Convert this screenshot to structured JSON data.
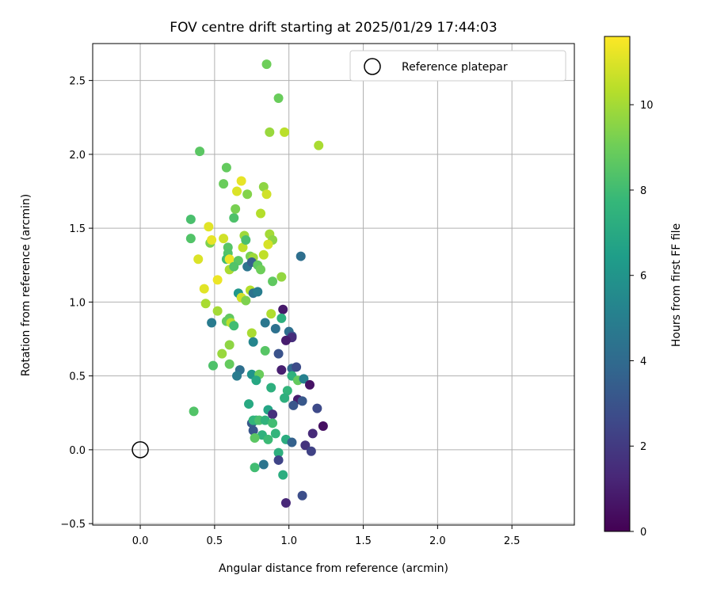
{
  "chart_data": {
    "type": "scatter",
    "title": "FOV centre drift starting at 2025/01/29 17:44:03",
    "xlabel": "Angular distance from reference (arcmin)",
    "ylabel": "Rotation from reference (arcmin)",
    "xlim": [
      -0.32,
      2.92
    ],
    "ylim": [
      -0.51,
      2.75
    ],
    "xticks": [
      0.0,
      0.5,
      1.0,
      1.5,
      2.0,
      2.5
    ],
    "xtick_labels": [
      "0.0",
      "0.5",
      "1.0",
      "1.5",
      "2.0",
      "2.5"
    ],
    "yticks": [
      -0.5,
      0.0,
      0.5,
      1.0,
      1.5,
      2.0,
      2.5
    ],
    "ytick_labels": [
      "−0.5",
      "0.0",
      "0.5",
      "1.0",
      "1.5",
      "2.0",
      "2.5"
    ],
    "grid": true,
    "legend": {
      "placement": "top-right",
      "entries": [
        "Reference platepar"
      ]
    },
    "reference_point": {
      "x": 0.0,
      "y": 0.0
    },
    "colorbar": {
      "label": "Hours from first FF file",
      "range": [
        0,
        11.6
      ],
      "ticks": [
        0,
        2,
        4,
        6,
        8,
        10
      ],
      "tick_labels": [
        "0",
        "2",
        "4",
        "6",
        "8",
        "10"
      ],
      "colormap": "viridis",
      "stops": [
        "#440154",
        "#482878",
        "#3e4989",
        "#31688e",
        "#26828e",
        "#1f9e89",
        "#35b779",
        "#6ece58",
        "#b5de2b",
        "#fde725"
      ]
    },
    "series": [
      {
        "points": [
          {
            "x": 0.85,
            "y": 2.61,
            "h": 9.0
          },
          {
            "x": 0.93,
            "y": 2.38,
            "h": 8.9
          },
          {
            "x": 0.87,
            "y": 2.15,
            "h": 9.8
          },
          {
            "x": 0.97,
            "y": 2.15,
            "h": 10.4
          },
          {
            "x": 1.2,
            "y": 2.06,
            "h": 10.1
          },
          {
            "x": 0.4,
            "y": 2.02,
            "h": 8.6
          },
          {
            "x": 0.58,
            "y": 1.91,
            "h": 8.8
          },
          {
            "x": 0.56,
            "y": 1.8,
            "h": 8.9
          },
          {
            "x": 0.68,
            "y": 1.82,
            "h": 11.2
          },
          {
            "x": 0.65,
            "y": 1.75,
            "h": 11.0
          },
          {
            "x": 0.72,
            "y": 1.73,
            "h": 9.4
          },
          {
            "x": 0.83,
            "y": 1.78,
            "h": 9.6
          },
          {
            "x": 0.85,
            "y": 1.73,
            "h": 10.8
          },
          {
            "x": 0.34,
            "y": 1.56,
            "h": 8.2
          },
          {
            "x": 0.63,
            "y": 1.57,
            "h": 8.3
          },
          {
            "x": 0.64,
            "y": 1.63,
            "h": 9.2
          },
          {
            "x": 0.81,
            "y": 1.6,
            "h": 10.3
          },
          {
            "x": 0.46,
            "y": 1.51,
            "h": 11.1
          },
          {
            "x": 0.34,
            "y": 1.43,
            "h": 8.4
          },
          {
            "x": 0.47,
            "y": 1.4,
            "h": 9.3
          },
          {
            "x": 0.48,
            "y": 1.42,
            "h": 11.2
          },
          {
            "x": 0.56,
            "y": 1.43,
            "h": 10.8
          },
          {
            "x": 0.59,
            "y": 1.37,
            "h": 8.5
          },
          {
            "x": 0.59,
            "y": 1.33,
            "h": 8.4
          },
          {
            "x": 0.7,
            "y": 1.45,
            "h": 9.9
          },
          {
            "x": 0.69,
            "y": 1.37,
            "h": 10.5
          },
          {
            "x": 0.71,
            "y": 1.42,
            "h": 8.2
          },
          {
            "x": 0.87,
            "y": 1.46,
            "h": 10.0
          },
          {
            "x": 0.89,
            "y": 1.42,
            "h": 9.6
          },
          {
            "x": 0.86,
            "y": 1.39,
            "h": 10.9
          },
          {
            "x": 0.39,
            "y": 1.29,
            "h": 11.0
          },
          {
            "x": 0.58,
            "y": 1.29,
            "h": 8.0
          },
          {
            "x": 0.6,
            "y": 1.29,
            "h": 11.3
          },
          {
            "x": 0.66,
            "y": 1.28,
            "h": 8.6
          },
          {
            "x": 0.74,
            "y": 1.31,
            "h": 9.2
          },
          {
            "x": 0.76,
            "y": 1.3,
            "h": 9.9
          },
          {
            "x": 0.83,
            "y": 1.32,
            "h": 10.5
          },
          {
            "x": 0.6,
            "y": 1.22,
            "h": 10.1
          },
          {
            "x": 0.63,
            "y": 1.24,
            "h": 8.4
          },
          {
            "x": 0.72,
            "y": 1.24,
            "h": 4.5
          },
          {
            "x": 0.75,
            "y": 1.27,
            "h": 3.5
          },
          {
            "x": 0.79,
            "y": 1.25,
            "h": 8.7
          },
          {
            "x": 0.81,
            "y": 1.22,
            "h": 9.0
          },
          {
            "x": 1.08,
            "y": 1.31,
            "h": 4.2
          },
          {
            "x": 0.52,
            "y": 1.15,
            "h": 11.3
          },
          {
            "x": 0.43,
            "y": 1.09,
            "h": 11.1
          },
          {
            "x": 0.89,
            "y": 1.14,
            "h": 8.7
          },
          {
            "x": 0.95,
            "y": 1.17,
            "h": 9.7
          },
          {
            "x": 0.66,
            "y": 1.06,
            "h": 6.1
          },
          {
            "x": 0.68,
            "y": 1.03,
            "h": 10.8
          },
          {
            "x": 0.71,
            "y": 1.01,
            "h": 9.3
          },
          {
            "x": 0.74,
            "y": 1.08,
            "h": 10.3
          },
          {
            "x": 0.76,
            "y": 1.06,
            "h": 4.4
          },
          {
            "x": 0.79,
            "y": 1.07,
            "h": 4.9
          },
          {
            "x": 0.44,
            "y": 0.99,
            "h": 10.1
          },
          {
            "x": 0.96,
            "y": 0.95,
            "h": 0.8
          },
          {
            "x": 0.52,
            "y": 0.94,
            "h": 10.0
          },
          {
            "x": 0.6,
            "y": 0.89,
            "h": 8.7
          },
          {
            "x": 0.48,
            "y": 0.86,
            "h": 4.8
          },
          {
            "x": 0.58,
            "y": 0.87,
            "h": 8.8
          },
          {
            "x": 0.61,
            "y": 0.86,
            "h": 10.4
          },
          {
            "x": 0.63,
            "y": 0.84,
            "h": 8.0
          },
          {
            "x": 0.84,
            "y": 0.86,
            "h": 4.6
          },
          {
            "x": 0.88,
            "y": 0.92,
            "h": 10.2
          },
          {
            "x": 0.95,
            "y": 0.89,
            "h": 7.3
          },
          {
            "x": 0.91,
            "y": 0.82,
            "h": 4.3
          },
          {
            "x": 1.0,
            "y": 0.8,
            "h": 4.2
          },
          {
            "x": 1.02,
            "y": 0.77,
            "h": 3.1
          },
          {
            "x": 1.02,
            "y": 0.76,
            "h": 1.5
          },
          {
            "x": 0.75,
            "y": 0.79,
            "h": 10.1
          },
          {
            "x": 0.98,
            "y": 0.74,
            "h": 0.9
          },
          {
            "x": 0.76,
            "y": 0.73,
            "h": 5.3
          },
          {
            "x": 0.6,
            "y": 0.71,
            "h": 9.6
          },
          {
            "x": 0.84,
            "y": 0.67,
            "h": 8.5
          },
          {
            "x": 0.93,
            "y": 0.65,
            "h": 3.0
          },
          {
            "x": 0.55,
            "y": 0.65,
            "h": 9.8
          },
          {
            "x": 0.49,
            "y": 0.57,
            "h": 8.3
          },
          {
            "x": 0.6,
            "y": 0.58,
            "h": 8.8
          },
          {
            "x": 0.95,
            "y": 0.54,
            "h": 1.0
          },
          {
            "x": 1.02,
            "y": 0.55,
            "h": 3.9
          },
          {
            "x": 1.05,
            "y": 0.56,
            "h": 2.7
          },
          {
            "x": 0.67,
            "y": 0.54,
            "h": 4.2
          },
          {
            "x": 0.65,
            "y": 0.5,
            "h": 4.8
          },
          {
            "x": 0.75,
            "y": 0.51,
            "h": 6.0
          },
          {
            "x": 0.8,
            "y": 0.51,
            "h": 8.9
          },
          {
            "x": 0.78,
            "y": 0.47,
            "h": 6.9
          },
          {
            "x": 0.88,
            "y": 0.42,
            "h": 7.3
          },
          {
            "x": 0.99,
            "y": 0.4,
            "h": 7.6
          },
          {
            "x": 1.02,
            "y": 0.5,
            "h": 7.4
          },
          {
            "x": 1.06,
            "y": 0.47,
            "h": 8.8
          },
          {
            "x": 1.1,
            "y": 0.48,
            "h": 5.1
          },
          {
            "x": 1.14,
            "y": 0.44,
            "h": 0.6
          },
          {
            "x": 0.97,
            "y": 0.35,
            "h": 7.3
          },
          {
            "x": 1.06,
            "y": 0.34,
            "h": 0.9
          },
          {
            "x": 1.09,
            "y": 0.33,
            "h": 3.2
          },
          {
            "x": 1.03,
            "y": 0.3,
            "h": 3.1
          },
          {
            "x": 1.19,
            "y": 0.28,
            "h": 2.6
          },
          {
            "x": 0.73,
            "y": 0.31,
            "h": 7.0
          },
          {
            "x": 0.86,
            "y": 0.27,
            "h": 6.8
          },
          {
            "x": 0.89,
            "y": 0.24,
            "h": 1.6
          },
          {
            "x": 0.36,
            "y": 0.26,
            "h": 8.4
          },
          {
            "x": 0.75,
            "y": 0.18,
            "h": 3.2
          },
          {
            "x": 0.76,
            "y": 0.2,
            "h": 7.6
          },
          {
            "x": 0.78,
            "y": 0.2,
            "h": 7.6
          },
          {
            "x": 0.8,
            "y": 0.2,
            "h": 8.2
          },
          {
            "x": 0.84,
            "y": 0.2,
            "h": 7.5
          },
          {
            "x": 0.89,
            "y": 0.18,
            "h": 8.0
          },
          {
            "x": 0.76,
            "y": 0.13,
            "h": 3.1
          },
          {
            "x": 0.82,
            "y": 0.1,
            "h": 7.4
          },
          {
            "x": 0.86,
            "y": 0.07,
            "h": 7.9
          },
          {
            "x": 0.91,
            "y": 0.11,
            "h": 7.6
          },
          {
            "x": 0.77,
            "y": 0.08,
            "h": 8.6
          },
          {
            "x": 0.98,
            "y": 0.07,
            "h": 7.2
          },
          {
            "x": 1.23,
            "y": 0.16,
            "h": 0.5
          },
          {
            "x": 1.16,
            "y": 0.11,
            "h": 1.4
          },
          {
            "x": 1.02,
            "y": 0.05,
            "h": 3.6
          },
          {
            "x": 1.11,
            "y": 0.03,
            "h": 1.7
          },
          {
            "x": 1.15,
            "y": -0.01,
            "h": 2.3
          },
          {
            "x": 0.93,
            "y": -0.02,
            "h": 7.3
          },
          {
            "x": 0.93,
            "y": -0.07,
            "h": 2.4
          },
          {
            "x": 0.83,
            "y": -0.1,
            "h": 4.5
          },
          {
            "x": 0.77,
            "y": -0.12,
            "h": 8.0
          },
          {
            "x": 0.96,
            "y": -0.17,
            "h": 7.2
          },
          {
            "x": 1.09,
            "y": -0.31,
            "h": 2.8
          },
          {
            "x": 0.98,
            "y": -0.36,
            "h": 1.3
          }
        ]
      }
    ]
  }
}
